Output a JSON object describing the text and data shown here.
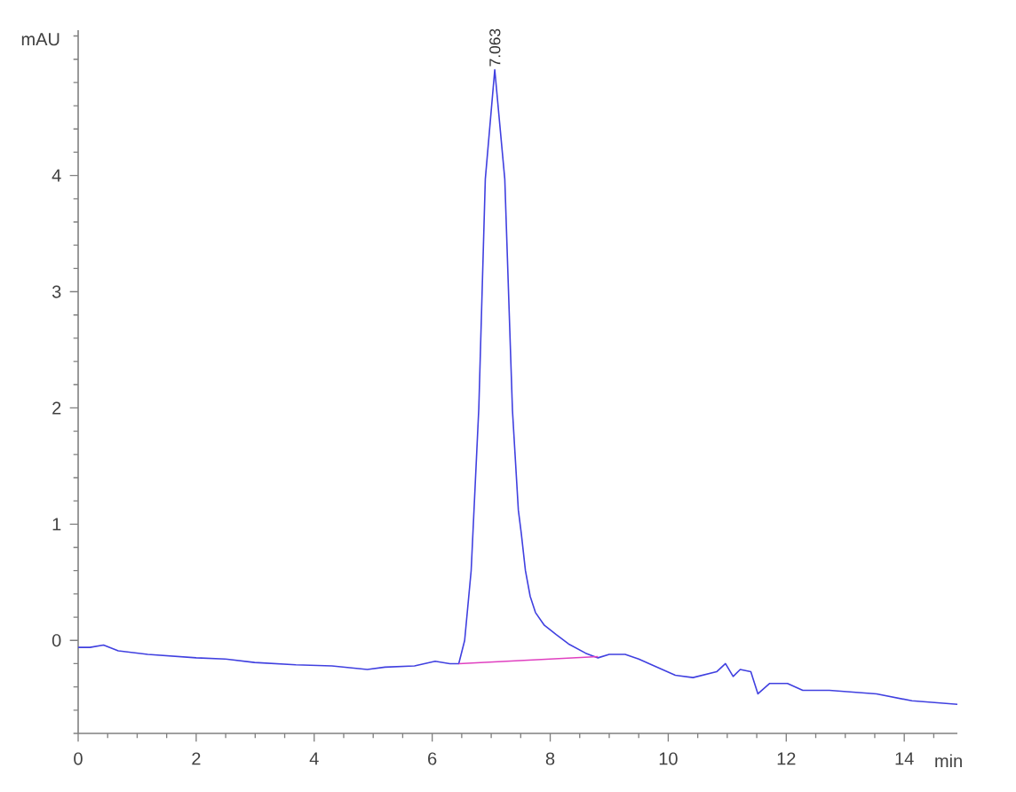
{
  "chart_data": {
    "type": "line",
    "xlabel": "min",
    "ylabel": "mAU",
    "xlim": [
      0,
      14.9
    ],
    "ylim": [
      -0.8,
      5.25
    ],
    "xticks": [
      0,
      {
        "value": 0.5,
        "label": null
      },
      {
        "value": 1,
        "label": null
      },
      {
        "value": 1.5,
        "label": null
      },
      2,
      {
        "value": 2.5,
        "label": null
      },
      {
        "value": 3,
        "label": null
      },
      {
        "value": 3.5,
        "label": null
      },
      4,
      {
        "value": 4.5,
        "label": null
      },
      {
        "value": 5,
        "label": null
      },
      {
        "value": 5.5,
        "label": null
      },
      6,
      {
        "value": 6.5,
        "label": null
      },
      {
        "value": 7,
        "label": null
      },
      {
        "value": 7.5,
        "label": null
      },
      8,
      {
        "value": 8.5,
        "label": null
      },
      {
        "value": 9,
        "label": null
      },
      {
        "value": 9.5,
        "label": null
      },
      10,
      {
        "value": 10.5,
        "label": null
      },
      {
        "value": 11,
        "label": null
      },
      {
        "value": 11.5,
        "label": null
      },
      12,
      {
        "value": 12.5,
        "label": null
      },
      {
        "value": 13,
        "label": null
      },
      {
        "value": 13.5,
        "label": null
      },
      14,
      {
        "value": 14.5,
        "label": null
      }
    ],
    "yticks": [
      {
        "value": -0.8,
        "label": null
      },
      {
        "value": -0.6,
        "label": null
      },
      {
        "value": -0.4,
        "label": null
      },
      {
        "value": -0.2,
        "label": null
      },
      0,
      {
        "value": 0.2,
        "label": null
      },
      {
        "value": 0.4,
        "label": null
      },
      {
        "value": 0.6,
        "label": null
      },
      {
        "value": 0.8,
        "label": null
      },
      1,
      {
        "value": 1.2,
        "label": null
      },
      {
        "value": 1.4,
        "label": null
      },
      {
        "value": 1.6,
        "label": null
      },
      {
        "value": 1.8,
        "label": null
      },
      2,
      {
        "value": 2.2,
        "label": null
      },
      {
        "value": 2.4,
        "label": null
      },
      {
        "value": 2.6,
        "label": null
      },
      {
        "value": 2.8,
        "label": null
      },
      3,
      {
        "value": 3.2,
        "label": null
      },
      {
        "value": 3.4,
        "label": null
      },
      {
        "value": 3.6,
        "label": null
      },
      {
        "value": 3.8,
        "label": null
      },
      4,
      {
        "value": 4.2,
        "label": null
      },
      {
        "value": 4.4,
        "label": null
      },
      {
        "value": 4.6,
        "label": null
      },
      {
        "value": 4.8,
        "label": null
      },
      {
        "value": 5,
        "label": null
      },
      {
        "value": 5.2,
        "label": null
      }
    ],
    "marker": "none",
    "line_style": "solid",
    "annotations": [
      {
        "text": "7.063",
        "x": 7.063,
        "y": 4.91
      }
    ],
    "series": [
      {
        "color": "#4040e0",
        "x": [
          0,
          0.2,
          0.43,
          0.68,
          1.18,
          2.0,
          2.49,
          2.99,
          3.69,
          4.3,
          4.9,
          5.2,
          5.7,
          6.05,
          6.3,
          6.45,
          6.55,
          6.66,
          6.79,
          6.9,
          7.06,
          7.23,
          7.36,
          7.46,
          7.51,
          7.58,
          7.66,
          7.75,
          7.9,
          8.1,
          8.31,
          8.6,
          8.81,
          9.0,
          9.27,
          9.5,
          9.72,
          10.12,
          10.42,
          10.82,
          10.97,
          11.1,
          11.22,
          11.4,
          11.52,
          11.72,
          12.02,
          12.28,
          12.73,
          13.53,
          14.13,
          14.9
        ],
        "values": [
          -0.06,
          -0.06,
          -0.04,
          -0.09,
          -0.12,
          -0.15,
          -0.16,
          -0.19,
          -0.21,
          -0.22,
          -0.25,
          -0.23,
          -0.22,
          -0.18,
          -0.2,
          -0.2,
          0.0,
          0.6,
          2.0,
          3.97,
          4.91,
          3.97,
          1.98,
          1.12,
          0.92,
          0.6,
          0.38,
          0.24,
          0.13,
          0.05,
          -0.03,
          -0.11,
          -0.15,
          -0.12,
          -0.12,
          -0.16,
          -0.21,
          -0.3,
          -0.32,
          -0.27,
          -0.2,
          -0.31,
          -0.25,
          -0.27,
          -0.46,
          -0.37,
          -0.37,
          -0.43,
          -0.43,
          -0.46,
          -0.52,
          -0.55
        ]
      },
      {
        "type": "line",
        "color": "#e040c0",
        "x": [
          6.45,
          8.81
        ],
        "values": [
          -0.2,
          -0.14
        ]
      }
    ]
  }
}
